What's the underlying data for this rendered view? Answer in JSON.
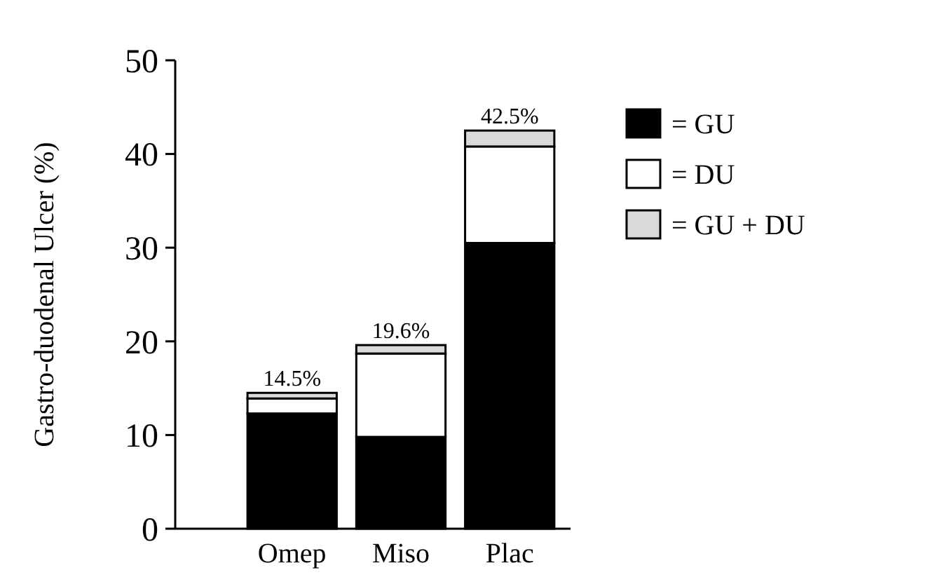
{
  "chart_data": {
    "type": "bar",
    "stacked": true,
    "ylabel": "Gastro-duodenal Ulcer (%)",
    "categories": [
      "Omep",
      "Miso",
      "Plac"
    ],
    "series": [
      {
        "name": "= GU",
        "color": "#000000",
        "values": [
          12.3,
          9.8,
          30.5
        ]
      },
      {
        "name": "= DU",
        "color": "#ffffff",
        "values": [
          1.6,
          8.9,
          10.3
        ]
      },
      {
        "name": "= GU + DU",
        "color": "#d9d9d9",
        "values": [
          0.6,
          0.9,
          1.7
        ]
      }
    ],
    "totals": [
      "14.5%",
      "19.6%",
      "42.5%"
    ],
    "ylim": [
      0,
      50
    ],
    "yticks": [
      0,
      10,
      20,
      30,
      40,
      50
    ],
    "legend": "right"
  }
}
